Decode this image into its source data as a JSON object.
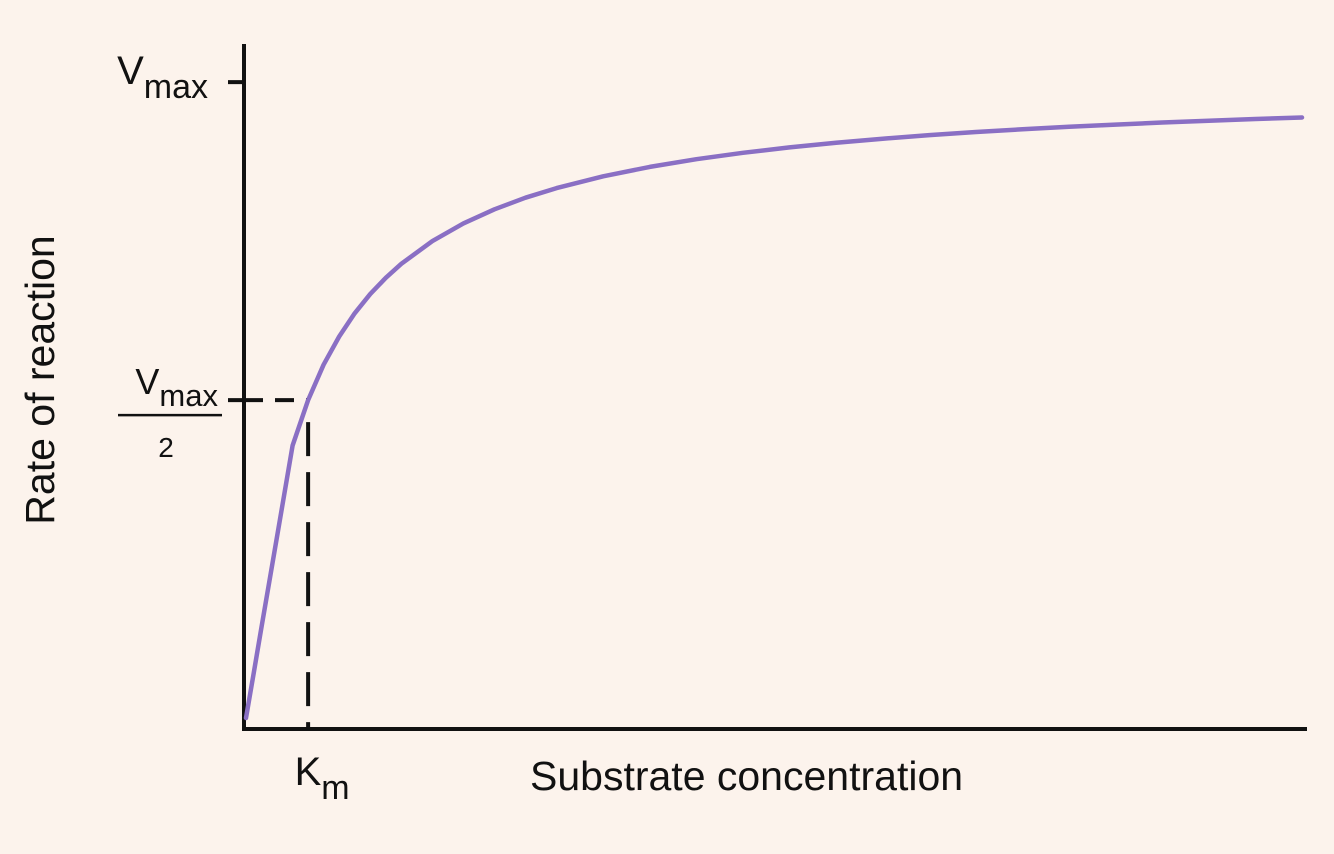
{
  "chart_data": {
    "type": "line",
    "title": "",
    "xlabel": "Substrate concentration",
    "ylabel": "Rate of reaction",
    "grid": false,
    "legend": "none",
    "series": [
      {
        "x": [
          0,
          0.5,
          1,
          1.5,
          2,
          3,
          4,
          5,
          6,
          7,
          8,
          9,
          10,
          12,
          14,
          16,
          18,
          20,
          23,
          26,
          29,
          32,
          35,
          38,
          41,
          44,
          47,
          50,
          53,
          56,
          59,
          62,
          65,
          68
        ],
        "y": [
          0,
          0.0714,
          0.1429,
          0.2143,
          0.2857,
          0.4286,
          0.5,
          0.5556,
          0.6,
          0.6364,
          0.6667,
          0.6923,
          0.7143,
          0.75,
          0.7778,
          0.8,
          0.8182,
          0.8333,
          0.8519,
          0.8667,
          0.8788,
          0.8889,
          0.8974,
          0.9048,
          0.9111,
          0.9167,
          0.9216,
          0.9259,
          0.9298,
          0.9333,
          0.9365,
          0.9394,
          0.942,
          0.9444
        ]
      }
    ],
    "y_ticks": [
      {
        "value": 1,
        "label": "V",
        "sub": "max"
      },
      {
        "value": 0.5,
        "label": "V",
        "sub": "max",
        "denominator": "2"
      }
    ],
    "x_ticks": [
      {
        "value": 4,
        "label": "K",
        "sub": "m"
      }
    ],
    "reference_lines": [
      {
        "x": 4,
        "y": 0.5,
        "style": "dashed"
      }
    ],
    "xlim": [
      0,
      68
    ],
    "ylim": [
      0,
      1.06
    ],
    "colors": {
      "curve": "#8a6fc4",
      "axes": "#111111",
      "background": "#fcf3ec"
    }
  }
}
